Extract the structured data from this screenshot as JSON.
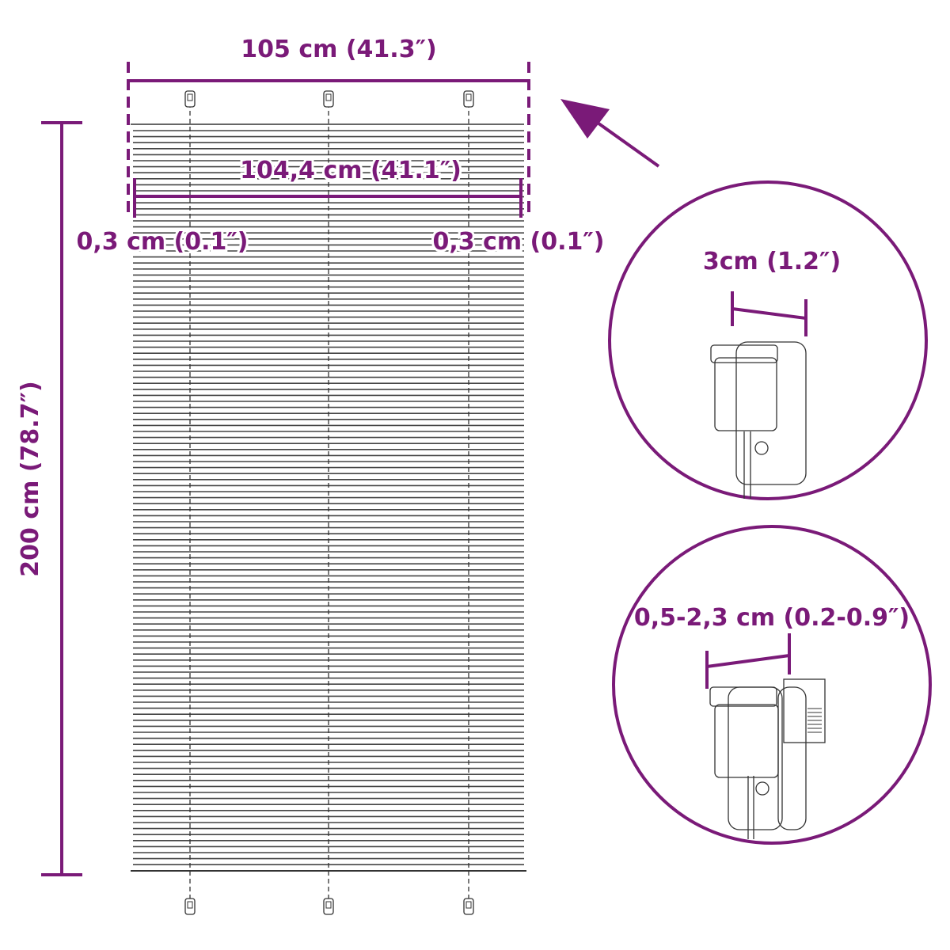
{
  "colors": {
    "accent": "#7a1a78",
    "line": "#333333"
  },
  "dimensions": {
    "overall_width": "105 cm (41.3″)",
    "blind_width": "104,4 cm (41.1″)",
    "left_gap": "0,3 cm (0.1″)",
    "right_gap": "0,3 cm (0.1″)",
    "height": "200 cm (78.7″)"
  },
  "details": {
    "clip_width": "3cm (1.2″)",
    "clip_range": "0,5-2,3 cm (0.2-0.9″)"
  },
  "icons": [
    "arrow-icon",
    "clip-icon",
    "screw-icon"
  ]
}
